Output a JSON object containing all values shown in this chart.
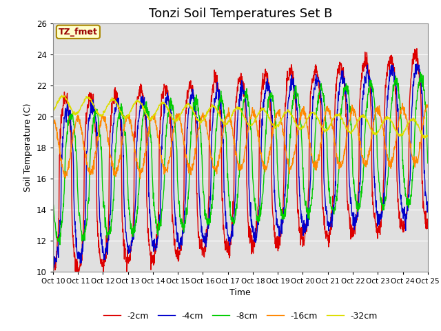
{
  "title": "Tonzi Soil Temperatures Set B",
  "xlabel": "Time",
  "ylabel": "Soil Temperature (C)",
  "ylim": [
    10,
    26
  ],
  "xlim": [
    0,
    15
  ],
  "annotation": "TZ_fmet",
  "series_colors": [
    "#dd0000",
    "#0000cc",
    "#00cc00",
    "#ff8800",
    "#dddd00"
  ],
  "series_labels": [
    "-2cm",
    "-4cm",
    "-8cm",
    "-16cm",
    "-32cm"
  ],
  "xtick_labels": [
    "Oct 10",
    "Oct 11",
    "Oct 12",
    "Oct 13",
    "Oct 14",
    "Oct 15",
    "Oct 16",
    "Oct 17",
    "Oct 18",
    "Oct 19",
    "Oct 20",
    "Oct 21",
    "Oct 22",
    "Oct 23",
    "Oct 24",
    "Oct 25"
  ],
  "xtick_positions": [
    0,
    1,
    2,
    3,
    4,
    5,
    6,
    7,
    8,
    9,
    10,
    11,
    12,
    13,
    14,
    15
  ],
  "plot_bg_color": "#e0e0e0",
  "title_fontsize": 13,
  "axis_fontsize": 9,
  "legend_fontsize": 9,
  "n_days": 15,
  "points_per_day": 96,
  "series_params": [
    [
      15.5,
      18.5,
      5.5,
      0.0,
      0.3
    ],
    [
      15.5,
      18.5,
      4.8,
      0.08,
      0.25
    ],
    [
      16.0,
      18.5,
      4.0,
      0.22,
      0.2
    ],
    [
      18.0,
      18.8,
      1.8,
      0.5,
      0.15
    ],
    [
      20.8,
      19.2,
      0.55,
      0.9,
      0.05
    ]
  ]
}
